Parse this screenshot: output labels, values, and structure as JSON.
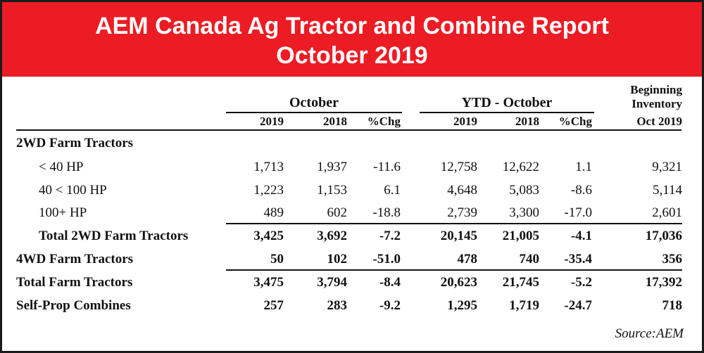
{
  "title": {
    "line1": "AEM Canada Ag Tractor and Combine Report",
    "line2": "October 2019"
  },
  "groups": {
    "month": "October",
    "ytd": "YTD - October",
    "inventory_1": "Beginning",
    "inventory_2": "Inventory"
  },
  "subheaders": [
    "2019",
    "2018",
    "%Chg",
    "2019",
    "2018",
    "%Chg",
    "Oct 2019"
  ],
  "rows": [
    {
      "label": "2WD Farm Tractors",
      "values": []
    },
    {
      "label": "< 40 HP",
      "values": [
        "1,713",
        "1,937",
        "-11.6",
        "12,758",
        "12,622",
        "1.1",
        "9,321"
      ]
    },
    {
      "label": "40 < 100 HP",
      "values": [
        "1,223",
        "1,153",
        "6.1",
        "4,648",
        "5,083",
        "-8.6",
        "5,114"
      ]
    },
    {
      "label": "100+ HP",
      "values": [
        "489",
        "602",
        "-18.8",
        "2,739",
        "3,300",
        "-17.0",
        "2,601"
      ]
    },
    {
      "label": "Total 2WD Farm Tractors",
      "values": [
        "3,425",
        "3,692",
        "-7.2",
        "20,145",
        "21,005",
        "-4.1",
        "17,036"
      ]
    },
    {
      "label": "4WD Farm Tractors",
      "values": [
        "50",
        "102",
        "-51.0",
        "478",
        "740",
        "-35.4",
        "356"
      ]
    },
    {
      "label": "Total Farm Tractors",
      "values": [
        "3,475",
        "3,794",
        "-8.4",
        "20,623",
        "21,745",
        "-5.2",
        "17,392"
      ]
    },
    {
      "label": "Self-Prop Combines",
      "values": [
        "257",
        "283",
        "-9.2",
        "1,295",
        "1,719",
        "-24.7",
        "718"
      ]
    }
  ],
  "source": "Source:AEM"
}
